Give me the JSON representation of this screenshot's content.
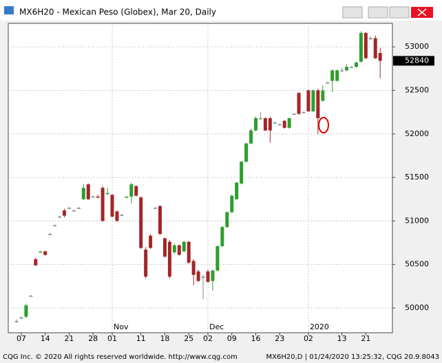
{
  "window": {
    "title": "MX6H20 - Mexican Peso (Globex), Mar 20, Daily",
    "status_left": "CQG Inc. © 2020 All rights reserved worldwide. http://www.cqg.com",
    "status_right": "MX6H20,D | 01/24/2020 13:25:32, CQG 20.9.8043"
  },
  "chart_data": {
    "type": "candlestick",
    "categories": [
      null,
      "07",
      null,
      null,
      null,
      null,
      "14",
      null,
      null,
      null,
      null,
      "21",
      null,
      null,
      null,
      null,
      "28",
      null,
      null,
      null,
      "01",
      null,
      null,
      null,
      null,
      null,
      "11",
      null,
      null,
      null,
      null,
      "18",
      null,
      null,
      null,
      null,
      "25",
      null,
      null,
      null,
      "02",
      null,
      null,
      null,
      null,
      "09",
      null,
      null,
      null,
      null,
      "16",
      null,
      null,
      null,
      null,
      "23",
      null,
      null,
      null,
      null,
      null,
      "02",
      null,
      null,
      null,
      null,
      null,
      null,
      "13",
      null,
      null,
      null,
      null,
      "21",
      null,
      null,
      null
    ],
    "month_labels": [
      {
        "label": "Nov",
        "at": 20
      },
      {
        "label": "Dec",
        "at": 40
      },
      {
        "label": "2020",
        "at": 61
      }
    ],
    "open": [
      49850,
      49890,
      49900,
      50140,
      50560,
      50640,
      50650,
      50850,
      50950,
      51050,
      51120,
      51150,
      51120,
      51150,
      51250,
      51420,
      51280,
      51280,
      51380,
      51310,
      51300,
      51110,
      51070,
      51270,
      51280,
      51400,
      51270,
      50670,
      50830,
      51150,
      51170,
      50800,
      50760,
      50640,
      50720,
      50650,
      50760,
      50540,
      50420,
      50360,
      50420,
      50310,
      50430,
      50710,
      50930,
      51100,
      51250,
      51430,
      51680,
      51890,
      52040,
      52180,
      52180,
      52180,
      52130,
      52110,
      52150,
      52070,
      52230,
      52470,
      52250,
      52500,
      52260,
      52500,
      52380,
      52590,
      52610,
      52610,
      52730,
      52730,
      52770,
      52770,
      52830,
      53160,
      53100,
      53100,
      52930
    ],
    "high": [
      49870,
      49900,
      50050,
      50150,
      50580,
      50650,
      50660,
      50860,
      50960,
      51060,
      51140,
      51160,
      51130,
      51160,
      51420,
      51430,
      51290,
      51300,
      51400,
      51380,
      51310,
      51120,
      51080,
      51280,
      51440,
      51410,
      51280,
      50700,
      50850,
      51160,
      51180,
      50810,
      50780,
      50740,
      50730,
      50770,
      50770,
      50560,
      50440,
      50380,
      50440,
      50440,
      50720,
      50940,
      51110,
      51300,
      51450,
      51690,
      51900,
      52060,
      52200,
      52250,
      52190,
      52200,
      52140,
      52120,
      52160,
      52190,
      52240,
      52480,
      52260,
      52510,
      52510,
      52520,
      52560,
      52600,
      52740,
      52740,
      52760,
      52800,
      52780,
      52830,
      53180,
      53170,
      53120,
      53130,
      52990
    ],
    "low": [
      49830,
      49870,
      49880,
      50130,
      50480,
      50630,
      50600,
      50840,
      50940,
      51040,
      51040,
      51140,
      51110,
      51140,
      51240,
      51240,
      51270,
      51260,
      50990,
      51300,
      51040,
      50990,
      51060,
      51260,
      51200,
      51280,
      50680,
      50340,
      50680,
      51140,
      50840,
      50580,
      50340,
      50620,
      50600,
      50640,
      50510,
      50260,
      50300,
      50100,
      50290,
      50200,
      50420,
      50700,
      50920,
      51090,
      51240,
      51420,
      51670,
      51880,
      52030,
      52170,
      52030,
      51900,
      52120,
      52100,
      52060,
      52060,
      52220,
      52220,
      52240,
      52250,
      52250,
      52000,
      52370,
      52580,
      52480,
      52600,
      52720,
      52720,
      52760,
      52760,
      52820,
      52860,
      53080,
      52860,
      52640
    ],
    "close": [
      49850,
      49890,
      50030,
      50140,
      50490,
      50650,
      50610,
      50850,
      50950,
      51050,
      51060,
      51150,
      51120,
      51150,
      51380,
      51250,
      51280,
      51270,
      51000,
      51320,
      51050,
      51000,
      51070,
      51280,
      51420,
      51290,
      50690,
      50360,
      50690,
      51150,
      50850,
      50590,
      50360,
      50720,
      50610,
      50760,
      50520,
      50380,
      50310,
      50360,
      50300,
      50430,
      50710,
      50930,
      51100,
      51290,
      51440,
      51680,
      51890,
      52040,
      52180,
      52180,
      52040,
      52040,
      52130,
      52110,
      52070,
      52180,
      52230,
      52230,
      52250,
      52260,
      52500,
      52180,
      52500,
      52590,
      52730,
      52730,
      52730,
      52770,
      52770,
      52820,
      53160,
      52870,
      53100,
      52870,
      52840
    ],
    "up_color": "#2e9e2e",
    "down_color": "#a3262a",
    "flat_color": "#7d8c8c",
    "ylim": [
      49715,
      53270
    ],
    "yticks": [
      50000,
      50500,
      51000,
      51500,
      52000,
      52500,
      53000
    ],
    "grid": true
  }
}
